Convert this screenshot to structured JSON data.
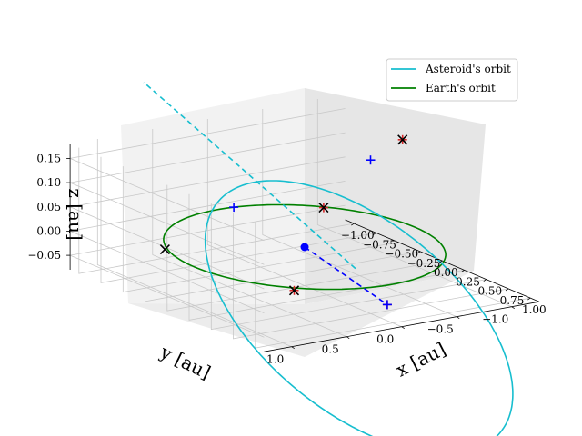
{
  "chart_data": {
    "type": "3d-line",
    "xlabel": "x [au]",
    "ylabel": "y [au]",
    "zlabel": "z [au]",
    "xlim": [
      -1.1,
      1.1
    ],
    "ylim": [
      -1.25,
      1.25
    ],
    "zlim": [
      -0.08,
      0.18
    ],
    "x_ticks": [
      -1.0,
      -0.75,
      -0.5,
      -0.25,
      0.0,
      0.25,
      0.5,
      0.75,
      1.0
    ],
    "x_tick_labels": [
      "−1.00",
      "−0.75",
      "−0.50",
      "−0.25",
      "0.00",
      "0.25",
      "0.50",
      "0.75",
      "1.00"
    ],
    "y_ticks": [
      1.0,
      0.5,
      0.0,
      -0.5,
      -1.0
    ],
    "y_tick_labels": [
      "1.0",
      "0.5",
      "0.0",
      "−0.5",
      "−1.0"
    ],
    "z_ticks": [
      0.15,
      0.1,
      0.05,
      0.0,
      -0.05
    ],
    "z_tick_labels": [
      "0.15",
      "0.10",
      "0.05",
      "0.00",
      "−0.05"
    ],
    "grid": true,
    "legend_position": "top-right",
    "series": [
      {
        "name": "Asteroid's orbit",
        "color": "#17becf"
      },
      {
        "name": "Earth's orbit",
        "color": "#008000"
      }
    ],
    "asteroid_orbit": {
      "a": 1.2,
      "e": 0.52,
      "inclination_deg": 9,
      "arg_periapsis_deg": 0
    },
    "earth_orbit": {
      "radius": 1.0
    },
    "sun_position": [
      0,
      0,
      0
    ],
    "markers": {
      "black_x": [
        [
          -0.2,
          -1.05,
          0.163
        ],
        [
          -0.72,
          -0.75,
          -0.005
        ],
        [
          0.78,
          0.72,
          0.0
        ],
        [
          -0.96,
          0.5,
          -0.058
        ]
      ],
      "red_plus": [
        [
          -0.2,
          -1.05,
          0.163
        ],
        [
          -0.72,
          -0.75,
          -0.005
        ],
        [
          0.78,
          0.72,
          0.0
        ],
        [
          1.0,
          0.05,
          -0.04
        ]
      ],
      "blue_plus": [
        [
          -0.5,
          -1.0,
          0.1
        ],
        [
          -0.99,
          -0.15,
          0.0
        ],
        [
          1.0,
          0.05,
          -0.04
        ]
      ],
      "dashed_lines": [
        {
          "from": [
            0,
            0,
            0
          ],
          "to": [
            1.0,
            0.05,
            -0.04
          ],
          "color": "#0000ff"
        },
        {
          "from": [
            0.576,
            0,
            0
          ],
          "to": [
            -1.824,
            0,
            0.2
          ],
          "color": "#17becf"
        }
      ]
    }
  }
}
